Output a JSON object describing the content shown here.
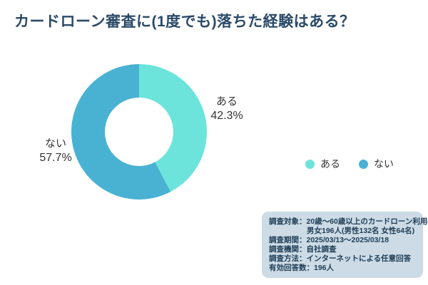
{
  "title": "カードローン審査に(1度でも)落ちた経験はある？",
  "chart_data": {
    "type": "pie",
    "subtype": "donut",
    "title": "カードローン審査に(1度でも)落ちた経験はある？",
    "slices": [
      {
        "label": "ある",
        "value": 42.3,
        "value_label": "42.3%",
        "color": "#6ce4dc"
      },
      {
        "label": "ない",
        "value": 57.7,
        "value_label": "57.7%",
        "color": "#49b2d3"
      }
    ],
    "start_angle_deg": 0,
    "direction": "clockwise",
    "inner_radius_ratio": 0.505,
    "legend_position": "right",
    "labels_outside": true
  },
  "survey_box": {
    "background": "#ccdbe5",
    "rows": [
      {
        "label": "調査対象：",
        "value": "20歳〜60歳以上のカードローン利用者",
        "value_line2": "男女196人(男性132名 女性64名)"
      },
      {
        "label": "調査期間：",
        "value": "2025/03/13〜2025/03/18"
      },
      {
        "label": "調査機関：",
        "value": "自社調査"
      },
      {
        "label": "調査方法：",
        "value": "インターネットによる任意回答"
      },
      {
        "label": "有効回答数：",
        "value": "196人"
      }
    ]
  },
  "colors": {
    "title_text": "#2b4a68",
    "label_text": "#333333",
    "background": "#ffffff"
  }
}
